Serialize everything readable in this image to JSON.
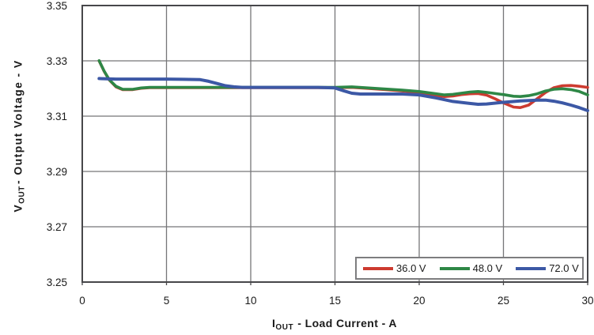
{
  "colors": {
    "background": "#ffffff",
    "grid": "#767678",
    "plot_border": "#47474a",
    "legend_border": "#7d7d7f",
    "text": "#1a1a1a"
  },
  "chart_data": {
    "type": "line",
    "title": "",
    "grid": true,
    "legend_position": "bottom-right-inside",
    "x_axis": {
      "symbol": "I",
      "symbol_sub": "OUT",
      "label_rest": "- Load Current - A",
      "min": 0,
      "max": 30,
      "tick_values": [
        0,
        5,
        10,
        15,
        20,
        25,
        30
      ],
      "tick_labels": [
        "0",
        "5",
        "10",
        "15",
        "20",
        "25",
        "30"
      ]
    },
    "y_axis": {
      "symbol": "V",
      "symbol_sub": "OUT",
      "label_rest": "- Output Voltage - V",
      "min": 3.25,
      "max": 3.35,
      "tick_values": [
        3.25,
        3.27,
        3.29,
        3.31,
        3.33,
        3.35
      ],
      "tick_labels": [
        "3.25",
        "3.27",
        "3.29",
        "3.31",
        "3.33",
        "3.35"
      ]
    },
    "series": [
      {
        "name": "36.0 V",
        "color": "#cd3b30",
        "points": [
          [
            1,
            3.33
          ],
          [
            1.3,
            3.3262
          ],
          [
            1.6,
            3.3231
          ],
          [
            2,
            3.3206
          ],
          [
            2.4,
            3.3196
          ],
          [
            3,
            3.3196
          ],
          [
            3.5,
            3.3201
          ],
          [
            4,
            3.3203
          ],
          [
            5,
            3.3203
          ],
          [
            6,
            3.3203
          ],
          [
            7,
            3.3203
          ],
          [
            8,
            3.3203
          ],
          [
            9,
            3.3203
          ],
          [
            10,
            3.3203
          ],
          [
            11,
            3.3203
          ],
          [
            12,
            3.3203
          ],
          [
            13,
            3.3203
          ],
          [
            14,
            3.3203
          ],
          [
            15,
            3.3203
          ],
          [
            16,
            3.3204
          ],
          [
            17,
            3.32
          ],
          [
            18,
            3.3196
          ],
          [
            19,
            3.3191
          ],
          [
            20,
            3.3185
          ],
          [
            21,
            3.3175
          ],
          [
            21.5,
            3.3171
          ],
          [
            22,
            3.3173
          ],
          [
            22.5,
            3.3178
          ],
          [
            23,
            3.3181
          ],
          [
            23.5,
            3.3182
          ],
          [
            24,
            3.3176
          ],
          [
            24.5,
            3.3163
          ],
          [
            25,
            3.3148
          ],
          [
            25.6,
            3.3133
          ],
          [
            26,
            3.3131
          ],
          [
            26.5,
            3.314
          ],
          [
            27,
            3.3163
          ],
          [
            27.5,
            3.3186
          ],
          [
            28,
            3.3203
          ],
          [
            28.5,
            3.321
          ],
          [
            29,
            3.3211
          ],
          [
            29.5,
            3.3208
          ],
          [
            30,
            3.3204
          ]
        ]
      },
      {
        "name": "48.0 V",
        "color": "#2e8746",
        "points": [
          [
            1,
            3.3301
          ],
          [
            1.3,
            3.3263
          ],
          [
            1.6,
            3.3232
          ],
          [
            2,
            3.3208
          ],
          [
            2.4,
            3.3197
          ],
          [
            3,
            3.3197
          ],
          [
            3.5,
            3.3202
          ],
          [
            4,
            3.3204
          ],
          [
            5,
            3.3204
          ],
          [
            6,
            3.3204
          ],
          [
            7,
            3.3204
          ],
          [
            8,
            3.3204
          ],
          [
            9,
            3.3204
          ],
          [
            10,
            3.3204
          ],
          [
            11,
            3.3204
          ],
          [
            12,
            3.3204
          ],
          [
            13,
            3.3204
          ],
          [
            14,
            3.3204
          ],
          [
            15,
            3.3204
          ],
          [
            16,
            3.3206
          ],
          [
            17,
            3.3202
          ],
          [
            18,
            3.3198
          ],
          [
            19,
            3.3194
          ],
          [
            20,
            3.3189
          ],
          [
            21,
            3.3181
          ],
          [
            21.5,
            3.3177
          ],
          [
            22,
            3.3179
          ],
          [
            23,
            3.3187
          ],
          [
            23.5,
            3.3189
          ],
          [
            24,
            3.3186
          ],
          [
            25,
            3.3178
          ],
          [
            25.6,
            3.3172
          ],
          [
            26,
            3.3171
          ],
          [
            26.5,
            3.3174
          ],
          [
            27,
            3.3181
          ],
          [
            27.5,
            3.3191
          ],
          [
            28,
            3.3197
          ],
          [
            28.5,
            3.3199
          ],
          [
            29,
            3.3196
          ],
          [
            29.5,
            3.3189
          ],
          [
            30,
            3.3177
          ]
        ]
      },
      {
        "name": "72.0 V",
        "color": "#3c58a5",
        "points": [
          [
            1,
            3.3236
          ],
          [
            2,
            3.3234
          ],
          [
            3,
            3.3234
          ],
          [
            4,
            3.3234
          ],
          [
            5,
            3.3234
          ],
          [
            6,
            3.3233
          ],
          [
            7,
            3.3232
          ],
          [
            7.5,
            3.3226
          ],
          [
            8,
            3.3218
          ],
          [
            8.5,
            3.321
          ],
          [
            9,
            3.3206
          ],
          [
            9.5,
            3.3204
          ],
          [
            10,
            3.3204
          ],
          [
            11,
            3.3204
          ],
          [
            12,
            3.3204
          ],
          [
            13,
            3.3204
          ],
          [
            14,
            3.3204
          ],
          [
            15,
            3.3202
          ],
          [
            15.5,
            3.3192
          ],
          [
            16,
            3.3183
          ],
          [
            16.5,
            3.318
          ],
          [
            17,
            3.318
          ],
          [
            18,
            3.318
          ],
          [
            19,
            3.318
          ],
          [
            20,
            3.3177
          ],
          [
            21,
            3.3166
          ],
          [
            22,
            3.3153
          ],
          [
            23,
            3.3146
          ],
          [
            23.5,
            3.3143
          ],
          [
            24,
            3.3144
          ],
          [
            25,
            3.315
          ],
          [
            26,
            3.3155
          ],
          [
            27,
            3.3158
          ],
          [
            27.5,
            3.3158
          ],
          [
            28,
            3.3154
          ],
          [
            28.5,
            3.3148
          ],
          [
            29,
            3.314
          ],
          [
            29.5,
            3.3131
          ],
          [
            30,
            3.312
          ]
        ]
      }
    ]
  }
}
